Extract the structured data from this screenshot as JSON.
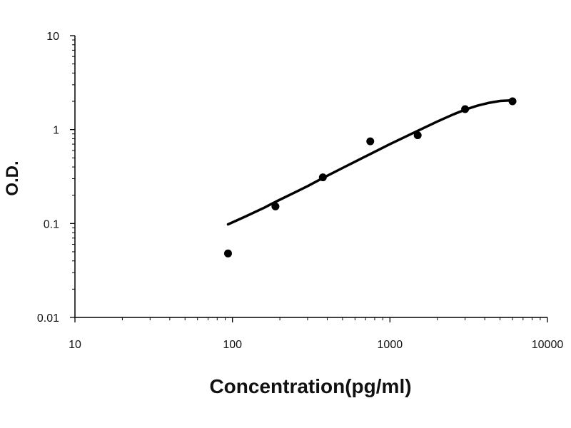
{
  "chart_data": {
    "type": "scatter",
    "title": "",
    "xlabel": "Concentration(pg/ml)",
    "ylabel": "O.D.",
    "x_scale": "log",
    "y_scale": "log",
    "xlim": [
      10,
      10000
    ],
    "ylim": [
      0.01,
      10
    ],
    "x_ticks": [
      "10",
      "100",
      "1000",
      "10000"
    ],
    "y_ticks": [
      "0.01",
      "0.1",
      "1",
      "10"
    ],
    "grid": false,
    "legend": "none",
    "colors": {
      "points": "#000000",
      "curve": "#000000",
      "axes": "#000000"
    },
    "series": [
      {
        "kind": "points",
        "x": [
          93.75,
          187.5,
          375,
          750,
          1500,
          3000,
          6000
        ],
        "y": [
          0.048,
          0.152,
          0.31,
          0.75,
          0.87,
          1.65,
          2.0
        ]
      },
      {
        "kind": "fitted-curve",
        "x": [
          93.75,
          120,
          160,
          187.5,
          250,
          300,
          375,
          500,
          600,
          750,
          1000,
          1200,
          1500,
          2000,
          2500,
          3000,
          3600,
          4200,
          5000,
          6000
        ],
        "y": [
          0.098,
          0.118,
          0.148,
          0.17,
          0.215,
          0.25,
          0.305,
          0.39,
          0.455,
          0.55,
          0.7,
          0.81,
          0.97,
          1.22,
          1.44,
          1.63,
          1.8,
          1.92,
          2.02,
          2.05
        ]
      }
    ]
  }
}
